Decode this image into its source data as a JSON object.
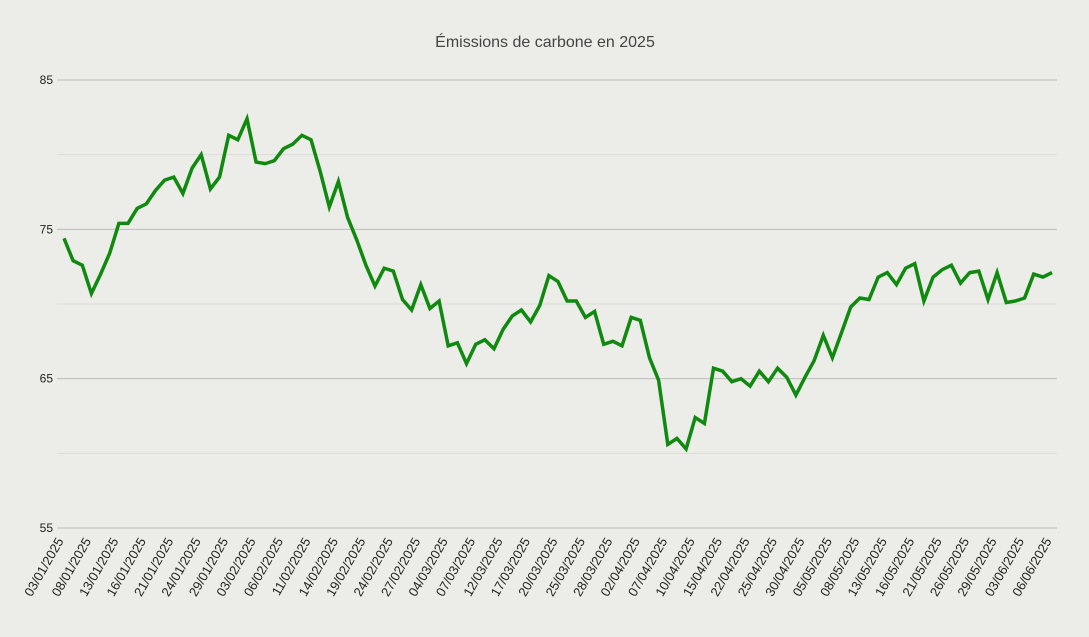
{
  "chart_data": {
    "type": "line",
    "title": "Émissions de carbone en 2025",
    "xlabel": "",
    "ylabel": "",
    "ylim": [
      55,
      85
    ],
    "yticks": [
      55,
      65,
      75,
      85
    ],
    "grid": true,
    "legend": "none",
    "x_tick_labels": [
      "03/01/2025",
      "08/01/2025",
      "13/01/2025",
      "16/01/2025",
      "21/01/2025",
      "24/01/2025",
      "29/01/2025",
      "03/02/2025",
      "06/02/2025",
      "11/02/2025",
      "14/02/2025",
      "19/02/2025",
      "24/02/2025",
      "27/02/2025",
      "04/03/2025",
      "07/03/2025",
      "12/03/2025",
      "17/03/2025",
      "20/03/2025",
      "25/03/2025",
      "28/03/2025",
      "02/04/2025",
      "07/04/2025",
      "10/04/2025",
      "15/04/2025",
      "22/04/2025",
      "25/04/2025",
      "30/04/2025",
      "05/05/2025",
      "08/05/2025",
      "13/05/2025",
      "16/05/2025",
      "21/05/2025",
      "26/05/2025",
      "29/05/2025",
      "03/06/2025",
      "06/06/2025"
    ],
    "series": [
      {
        "color": "#0f8a0f",
        "values": [
          74.4,
          72.9,
          72.6,
          70.7,
          72.0,
          73.4,
          75.4,
          75.4,
          76.4,
          76.7,
          77.6,
          78.3,
          78.5,
          77.4,
          79.1,
          80.0,
          77.7,
          78.5,
          81.3,
          81.0,
          82.4,
          79.5,
          79.4,
          79.6,
          80.4,
          80.7,
          81.3,
          81.0,
          78.9,
          76.5,
          78.2,
          75.8,
          74.3,
          72.6,
          71.2,
          72.4,
          72.2,
          70.3,
          69.6,
          71.3,
          69.7,
          70.2,
          67.2,
          67.4,
          66.0,
          67.3,
          67.6,
          67.0,
          68.3,
          69.2,
          69.6,
          68.8,
          69.9,
          71.9,
          71.5,
          70.2,
          70.2,
          69.1,
          69.5,
          67.3,
          67.5,
          67.2,
          69.1,
          68.9,
          66.4,
          64.9,
          60.6,
          61.0,
          60.3,
          62.4,
          62.0,
          65.7,
          65.5,
          64.8,
          65.0,
          64.5,
          65.5,
          64.8,
          65.7,
          65.1,
          63.9,
          65.1,
          66.2,
          67.9,
          66.4,
          68.1,
          69.8,
          70.4,
          70.3,
          71.8,
          72.1,
          71.3,
          72.4,
          72.7,
          70.2,
          71.8,
          72.3,
          72.6,
          71.4,
          72.1,
          72.2,
          70.3,
          72.1,
          70.1,
          70.2,
          70.4,
          72.0,
          71.8,
          72.1
        ]
      }
    ]
  }
}
